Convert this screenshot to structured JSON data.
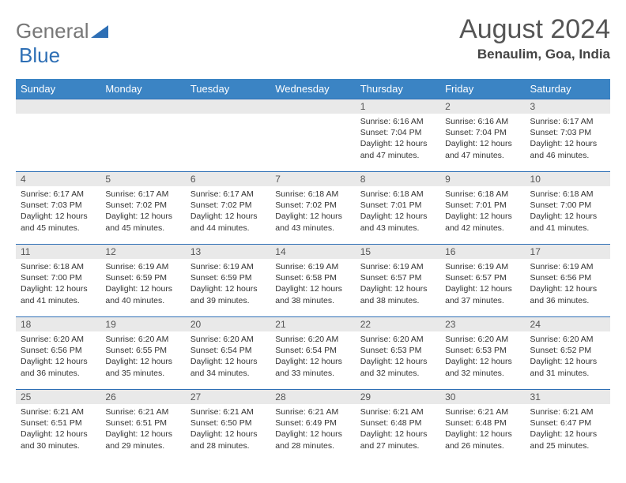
{
  "logo": {
    "text1": "General",
    "text2": "Blue"
  },
  "header": {
    "month": "August 2024",
    "location": "Benaulim, Goa, India"
  },
  "colors": {
    "header_bg": "#3b84c4",
    "row_border": "#2e6fb5",
    "daynum_bg": "#e9e9e9",
    "page_bg": "#ffffff",
    "text": "#333333"
  },
  "days_of_week": [
    "Sunday",
    "Monday",
    "Tuesday",
    "Wednesday",
    "Thursday",
    "Friday",
    "Saturday"
  ],
  "first_day_index": 4,
  "days": [
    {
      "n": 1,
      "sunrise": "6:16 AM",
      "sunset": "7:04 PM",
      "daylight": "12 hours and 47 minutes."
    },
    {
      "n": 2,
      "sunrise": "6:16 AM",
      "sunset": "7:04 PM",
      "daylight": "12 hours and 47 minutes."
    },
    {
      "n": 3,
      "sunrise": "6:17 AM",
      "sunset": "7:03 PM",
      "daylight": "12 hours and 46 minutes."
    },
    {
      "n": 4,
      "sunrise": "6:17 AM",
      "sunset": "7:03 PM",
      "daylight": "12 hours and 45 minutes."
    },
    {
      "n": 5,
      "sunrise": "6:17 AM",
      "sunset": "7:02 PM",
      "daylight": "12 hours and 45 minutes."
    },
    {
      "n": 6,
      "sunrise": "6:17 AM",
      "sunset": "7:02 PM",
      "daylight": "12 hours and 44 minutes."
    },
    {
      "n": 7,
      "sunrise": "6:18 AM",
      "sunset": "7:02 PM",
      "daylight": "12 hours and 43 minutes."
    },
    {
      "n": 8,
      "sunrise": "6:18 AM",
      "sunset": "7:01 PM",
      "daylight": "12 hours and 43 minutes."
    },
    {
      "n": 9,
      "sunrise": "6:18 AM",
      "sunset": "7:01 PM",
      "daylight": "12 hours and 42 minutes."
    },
    {
      "n": 10,
      "sunrise": "6:18 AM",
      "sunset": "7:00 PM",
      "daylight": "12 hours and 41 minutes."
    },
    {
      "n": 11,
      "sunrise": "6:18 AM",
      "sunset": "7:00 PM",
      "daylight": "12 hours and 41 minutes."
    },
    {
      "n": 12,
      "sunrise": "6:19 AM",
      "sunset": "6:59 PM",
      "daylight": "12 hours and 40 minutes."
    },
    {
      "n": 13,
      "sunrise": "6:19 AM",
      "sunset": "6:59 PM",
      "daylight": "12 hours and 39 minutes."
    },
    {
      "n": 14,
      "sunrise": "6:19 AM",
      "sunset": "6:58 PM",
      "daylight": "12 hours and 38 minutes."
    },
    {
      "n": 15,
      "sunrise": "6:19 AM",
      "sunset": "6:57 PM",
      "daylight": "12 hours and 38 minutes."
    },
    {
      "n": 16,
      "sunrise": "6:19 AM",
      "sunset": "6:57 PM",
      "daylight": "12 hours and 37 minutes."
    },
    {
      "n": 17,
      "sunrise": "6:19 AM",
      "sunset": "6:56 PM",
      "daylight": "12 hours and 36 minutes."
    },
    {
      "n": 18,
      "sunrise": "6:20 AM",
      "sunset": "6:56 PM",
      "daylight": "12 hours and 36 minutes."
    },
    {
      "n": 19,
      "sunrise": "6:20 AM",
      "sunset": "6:55 PM",
      "daylight": "12 hours and 35 minutes."
    },
    {
      "n": 20,
      "sunrise": "6:20 AM",
      "sunset": "6:54 PM",
      "daylight": "12 hours and 34 minutes."
    },
    {
      "n": 21,
      "sunrise": "6:20 AM",
      "sunset": "6:54 PM",
      "daylight": "12 hours and 33 minutes."
    },
    {
      "n": 22,
      "sunrise": "6:20 AM",
      "sunset": "6:53 PM",
      "daylight": "12 hours and 32 minutes."
    },
    {
      "n": 23,
      "sunrise": "6:20 AM",
      "sunset": "6:53 PM",
      "daylight": "12 hours and 32 minutes."
    },
    {
      "n": 24,
      "sunrise": "6:20 AM",
      "sunset": "6:52 PM",
      "daylight": "12 hours and 31 minutes."
    },
    {
      "n": 25,
      "sunrise": "6:21 AM",
      "sunset": "6:51 PM",
      "daylight": "12 hours and 30 minutes."
    },
    {
      "n": 26,
      "sunrise": "6:21 AM",
      "sunset": "6:51 PM",
      "daylight": "12 hours and 29 minutes."
    },
    {
      "n": 27,
      "sunrise": "6:21 AM",
      "sunset": "6:50 PM",
      "daylight": "12 hours and 28 minutes."
    },
    {
      "n": 28,
      "sunrise": "6:21 AM",
      "sunset": "6:49 PM",
      "daylight": "12 hours and 28 minutes."
    },
    {
      "n": 29,
      "sunrise": "6:21 AM",
      "sunset": "6:48 PM",
      "daylight": "12 hours and 27 minutes."
    },
    {
      "n": 30,
      "sunrise": "6:21 AM",
      "sunset": "6:48 PM",
      "daylight": "12 hours and 26 minutes."
    },
    {
      "n": 31,
      "sunrise": "6:21 AM",
      "sunset": "6:47 PM",
      "daylight": "12 hours and 25 minutes."
    }
  ],
  "labels": {
    "sunrise": "Sunrise:",
    "sunset": "Sunset:",
    "daylight": "Daylight:"
  }
}
